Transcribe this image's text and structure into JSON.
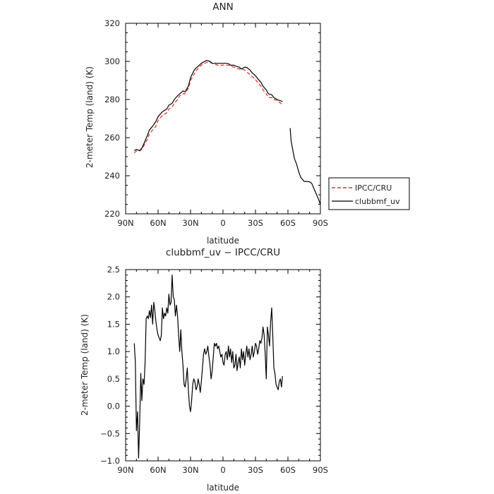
{
  "chart_data": [
    {
      "type": "line",
      "title": "ANN",
      "xlabel": "latitude",
      "ylabel": "2-meter Temp (land) (K)",
      "x_ticks": [
        "90N",
        "60N",
        "30N",
        "0",
        "30S",
        "60S",
        "90S"
      ],
      "xlim": [
        90,
        -90
      ],
      "ylim": [
        220,
        320
      ],
      "y_ticks": [
        "220",
        "240",
        "260",
        "280",
        "300",
        "320"
      ],
      "legend": {
        "placement": "outside-right",
        "entries": [
          "IPCC/CRU",
          "clubbmf_uv"
        ]
      },
      "series": [
        {
          "name": "IPCC/CRU",
          "color": "#e8322a",
          "style": "dashed",
          "x": [
            82,
            80,
            77,
            75,
            73,
            70,
            68,
            65,
            62,
            60,
            57,
            55,
            52,
            50,
            47,
            45,
            42,
            40,
            37,
            35,
            32,
            30,
            27,
            25,
            22,
            20,
            17,
            15,
            12,
            10,
            7,
            5,
            2,
            0,
            -2,
            -5,
            -7,
            -10,
            -12,
            -15,
            -17,
            -20,
            -22,
            -25,
            -27,
            -30,
            -32,
            -35,
            -37,
            -40,
            -42,
            -45,
            -47,
            -50,
            -52,
            -55
          ],
          "y": [
            252,
            253,
            253,
            254,
            256,
            259,
            262,
            264,
            266,
            269,
            271,
            272,
            273,
            275,
            276,
            278,
            280,
            282,
            283,
            283,
            286,
            290,
            293,
            295,
            297,
            298,
            299,
            299.5,
            299.5,
            299,
            298.5,
            298,
            298,
            298,
            298,
            298,
            297.5,
            297,
            296.5,
            296,
            296,
            295.5,
            294.5,
            293,
            292,
            290.5,
            289,
            287,
            285,
            283,
            281,
            281,
            280,
            279.5,
            278.5,
            277.5
          ]
        },
        {
          "name": "clubbmf_uv",
          "color": "#000000",
          "style": "solid",
          "x": [
            82,
            80,
            77,
            75,
            73,
            70,
            68,
            65,
            62,
            60,
            57,
            55,
            52,
            50,
            47,
            45,
            42,
            40,
            37,
            35,
            32,
            30,
            27,
            25,
            22,
            20,
            17,
            15,
            12,
            10,
            7,
            5,
            2,
            0,
            -2,
            -5,
            -7,
            -10,
            -12,
            -15,
            -17,
            -20,
            -22,
            -25,
            -27,
            -30,
            -32,
            -35,
            -37,
            -40,
            -42,
            -45,
            -47,
            -50,
            -52,
            -55,
            null,
            -62,
            -63,
            -64,
            -66,
            -68,
            -70,
            -72,
            -75,
            -77,
            -80,
            -82,
            -85,
            -88,
            -90
          ],
          "y": [
            253.2,
            253.8,
            253.2,
            254.5,
            257,
            261,
            264,
            266,
            268.5,
            271,
            273,
            274,
            275,
            277,
            278,
            280,
            282,
            283,
            284.5,
            284,
            287,
            291.5,
            295,
            296.5,
            298,
            299,
            300,
            300.5,
            300,
            299,
            299,
            299,
            299,
            299,
            299,
            298.8,
            298,
            298,
            297.5,
            297,
            296,
            297,
            296.8,
            295.5,
            294,
            292.5,
            291,
            289,
            287,
            285,
            283,
            282.5,
            281,
            280,
            279.5,
            279,
            null,
            265,
            258,
            255,
            249,
            246,
            242,
            239,
            237,
            237,
            236.8,
            236,
            232,
            228,
            225
          ]
        }
      ]
    },
    {
      "type": "line",
      "title": "clubbmf_uv − IPCC/CRU",
      "xlabel": "latitude",
      "ylabel": "2-meter Temp (land) (K)",
      "x_ticks": [
        "90N",
        "60N",
        "30N",
        "0",
        "30S",
        "60S",
        "90S"
      ],
      "xlim": [
        90,
        -90
      ],
      "ylim": [
        -1.0,
        2.5
      ],
      "y_ticks": [
        "−1.0",
        "−0.5",
        "0.0",
        "0.5",
        "1.0",
        "1.5",
        "2.0",
        "2.5"
      ],
      "series": [
        {
          "color": "#000000",
          "style": "solid",
          "x": [
            82,
            81,
            80,
            79,
            78,
            77,
            76,
            75,
            74,
            73,
            72,
            71,
            70,
            69,
            68,
            67,
            66,
            65,
            64,
            63,
            62,
            61,
            60,
            59,
            58,
            57,
            56,
            55,
            54,
            53,
            52,
            51,
            50,
            49,
            48,
            47,
            46,
            45,
            44,
            43,
            42,
            41,
            40,
            39,
            38,
            37,
            36,
            35,
            34,
            33,
            32,
            31,
            30,
            29,
            28,
            27,
            26,
            25,
            24,
            23,
            22,
            21,
            20,
            19,
            18,
            17,
            16,
            15,
            14,
            13,
            12,
            11,
            10,
            9,
            8,
            7,
            6,
            5,
            4,
            3,
            2,
            1,
            0,
            -1,
            -2,
            -3,
            -4,
            -5,
            -6,
            -7,
            -8,
            -9,
            -10,
            -11,
            -12,
            -13,
            -14,
            -15,
            -16,
            -17,
            -18,
            -19,
            -20,
            -21,
            -22,
            -23,
            -24,
            -25,
            -26,
            -27,
            -28,
            -29,
            -30,
            -31,
            -32,
            -33,
            -34,
            -35,
            -36,
            -37,
            -38,
            -39,
            -40,
            -41,
            -42,
            -43,
            -44,
            -45,
            -46,
            -47,
            -48,
            -49,
            -50,
            -51,
            -52,
            -53,
            -54,
            -55
          ],
          "y": [
            1.15,
            0.8,
            -0.45,
            -0.1,
            -0.95,
            -0.3,
            0.6,
            0.1,
            0.5,
            0.4,
            0.8,
            1.6,
            1.65,
            1.6,
            1.75,
            1.62,
            1.85,
            1.5,
            1.9,
            1.75,
            1.55,
            1.4,
            1.3,
            1.25,
            1.2,
            1.3,
            1.8,
            1.6,
            1.7,
            1.65,
            1.8,
            1.7,
            2.05,
            1.85,
            1.9,
            2.4,
            2.0,
            1.95,
            1.65,
            1.85,
            1.65,
            1.3,
            1.0,
            1.4,
            1.0,
            0.75,
            0.4,
            0.35,
            0.5,
            0.7,
            0.3,
            0.0,
            -0.1,
            0.1,
            0.4,
            0.5,
            0.45,
            0.3,
            0.35,
            0.5,
            0.4,
            0.25,
            0.45,
            0.7,
            0.95,
            1.05,
            0.95,
            1.0,
            1.1,
            0.9,
            0.75,
            0.5,
            0.65,
            0.9,
            1.15,
            1.1,
            1.15,
            1.05,
            1.1,
            1.0,
            0.9,
            0.95,
            0.8,
            0.75,
            0.95,
            1.0,
            0.85,
            1.1,
            0.9,
            1.05,
            0.8,
            1.0,
            0.7,
            0.75,
            0.95,
            0.65,
            0.8,
            0.9,
            0.7,
            1.05,
            0.85,
            1.0,
            0.75,
            0.95,
            1.1,
            0.9,
            1.05,
            0.85,
            0.95,
            1.1,
            0.9,
            1.0,
            1.15,
            1.1,
            0.95,
            1.05,
            1.2,
            1.15,
            1.25,
            1.45,
            1.3,
            0.95,
            0.5,
            1.45,
            1.3,
            1.1,
            1.55,
            1.8,
            1.3,
            0.7,
            0.6,
            0.4,
            0.35,
            0.3,
            0.45,
            0.5,
            0.35,
            0.55
          ]
        }
      ]
    }
  ]
}
